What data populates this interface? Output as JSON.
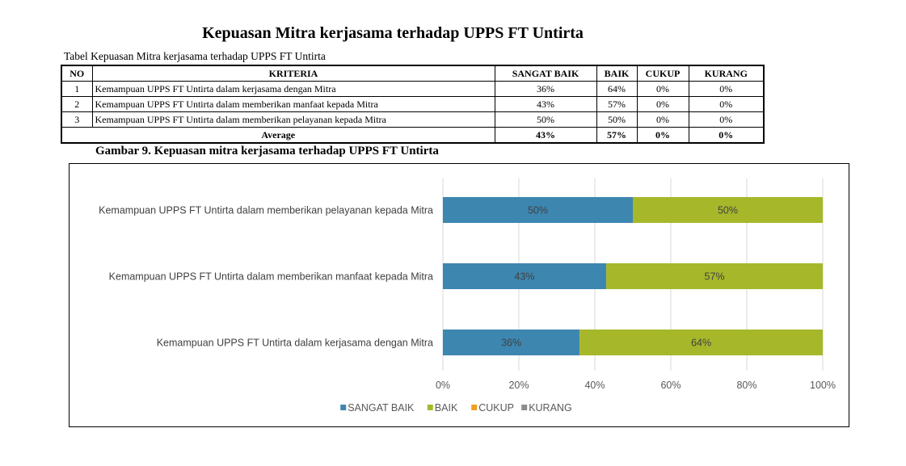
{
  "document": {
    "title": "Kepuasan Mitra kerjasama terhadap UPPS FT Untirta",
    "table_caption": "Tabel Kepuasan Mitra kerjasama terhadap UPPS FT Untirta",
    "figure_caption": "Gambar 9. Kepuasan mitra kerjasama terhadap UPPS FT Untirta"
  },
  "table": {
    "headers": [
      "NO",
      "KRITERIA",
      "SANGAT BAIK",
      "BAIK",
      "CUKUP",
      "KURANG"
    ],
    "rows": [
      {
        "no": "1",
        "kriteria": "Kemampuan UPPS FT Untirta dalam kerjasama dengan Mitra",
        "sangat_baik": "36%",
        "baik": "64%",
        "cukup": "0%",
        "kurang": "0%"
      },
      {
        "no": "2",
        "kriteria": "Kemampuan UPPS FT Untirta dalam memberikan manfaat kepada Mitra",
        "sangat_baik": "43%",
        "baik": "57%",
        "cukup": "0%",
        "kurang": "0%"
      },
      {
        "no": "3",
        "kriteria": "Kemampuan UPPS FT Untirta dalam memberikan pelayanan kepada Mitra",
        "sangat_baik": "50%",
        "baik": "50%",
        "cukup": "0%",
        "kurang": "0%"
      }
    ],
    "average": {
      "label": "Average",
      "sangat_baik": "43%",
      "baik": "57%",
      "cukup": "0%",
      "kurang": "0%"
    }
  },
  "chart_data": {
    "type": "bar",
    "orientation": "horizontal",
    "stacked": true,
    "categories": [
      "Kemampuan UPPS FT Untirta dalam memberikan pelayanan kepada Mitra",
      "Kemampuan UPPS FT Untirta dalam memberikan manfaat kepada Mitra",
      "Kemampuan UPPS FT Untirta dalam kerjasama dengan Mitra"
    ],
    "series": [
      {
        "name": "SANGAT BAIK",
        "color": "#3d86b0",
        "values": [
          50,
          43,
          36
        ],
        "labels": [
          "50%",
          "43%",
          "36%"
        ]
      },
      {
        "name": "BAIK",
        "color": "#a6b82a",
        "values": [
          50,
          57,
          64
        ],
        "labels": [
          "50%",
          "57%",
          "64%"
        ]
      },
      {
        "name": "CUKUP",
        "color": "#f0a022",
        "values": [
          0,
          0,
          0
        ],
        "labels": []
      },
      {
        "name": "KURANG",
        "color": "#8c8c8c",
        "values": [
          0,
          0,
          0
        ],
        "labels": []
      }
    ],
    "xlim": [
      0,
      100
    ],
    "x_ticks": [
      "0%",
      "20%",
      "40%",
      "60%",
      "80%",
      "100%"
    ],
    "grid": true,
    "legend_position": "bottom"
  }
}
